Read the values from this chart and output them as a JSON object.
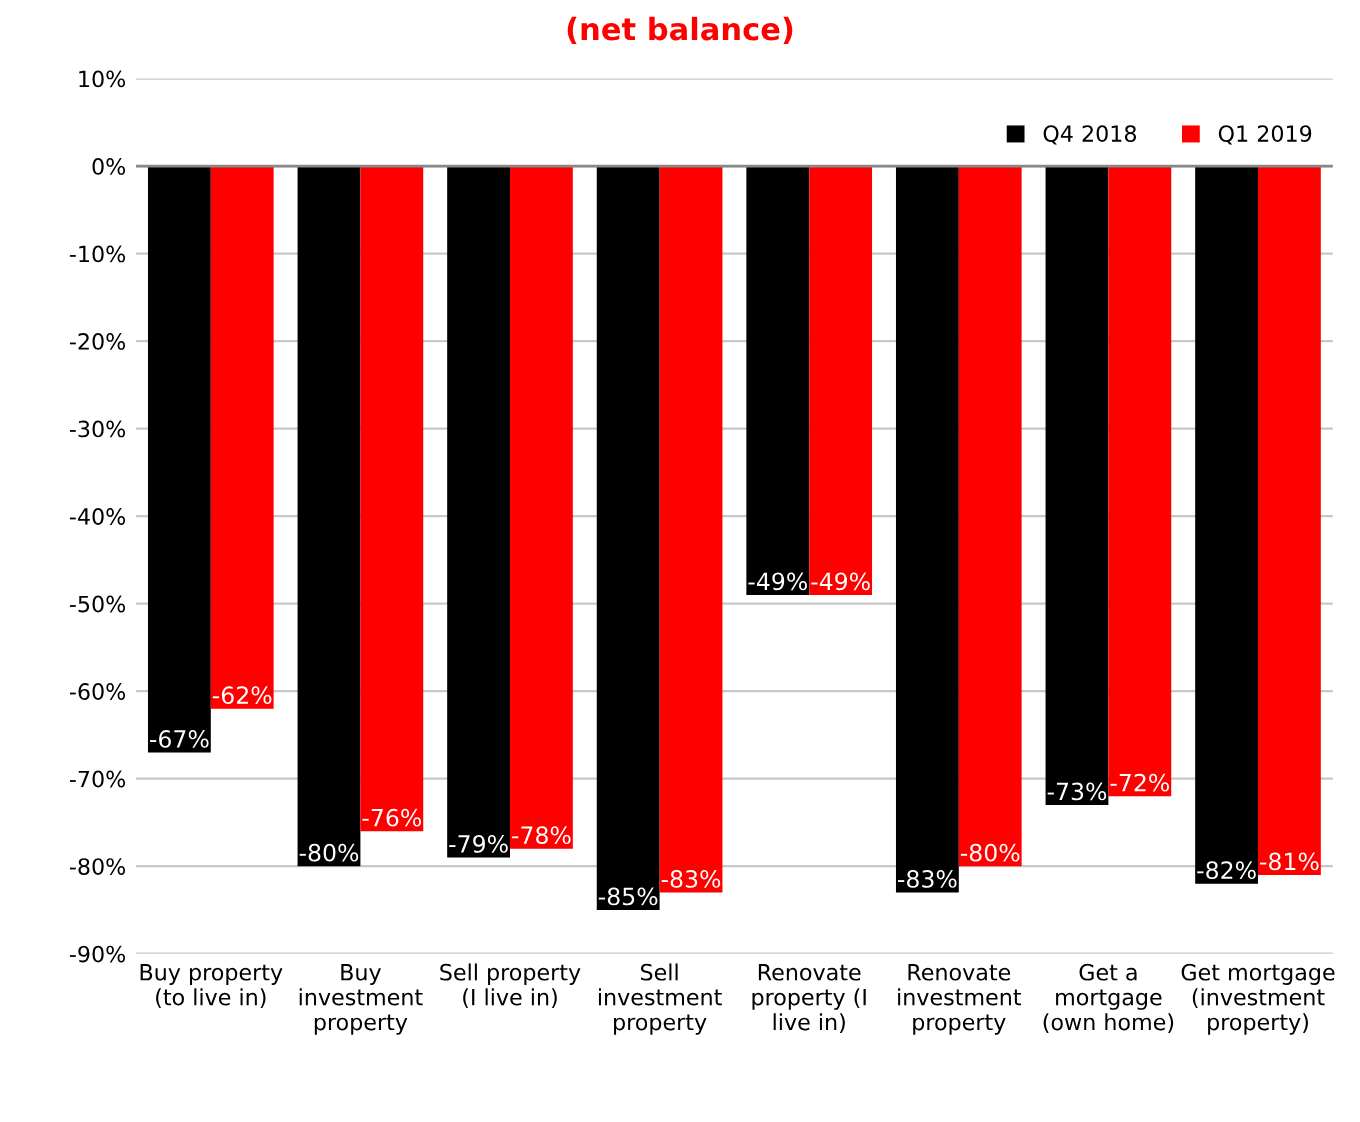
{
  "chart_data": {
    "type": "bar",
    "title": "(net balance)",
    "categories": [
      "Buy property\n(to live in)",
      "Buy\ninvestment\nproperty",
      "Sell property\n(I live in)",
      "Sell\ninvestment\nproperty",
      "Renovate\nproperty (I\nlive in)",
      "Renovate\ninvestment\nproperty",
      "Get a\nmortgage\n(own home)",
      "Get mortgage\n(investment\nproperty)"
    ],
    "series": [
      {
        "name": "Q4 2018",
        "color": "#000000",
        "values": [
          -67,
          -80,
          -79,
          -85,
          -49,
          -83,
          -73,
          -82
        ],
        "value_labels": [
          "-67%",
          "-80%",
          "-79%",
          "-85%",
          "-49%",
          "-83%",
          "-73%",
          "-82%"
        ]
      },
      {
        "name": "Q1 2019",
        "color": "#ff0000",
        "values": [
          -62,
          -76,
          -78,
          -83,
          -49,
          -80,
          -72,
          -81
        ],
        "value_labels": [
          "-62%",
          "-76%",
          "-78%",
          "-83%",
          "-49%",
          "-80%",
          "-72%",
          "-81%"
        ]
      }
    ],
    "ylim": [
      -90,
      10
    ],
    "yticks": [
      {
        "value": 10,
        "label": "10%"
      },
      {
        "value": 0,
        "label": "0%"
      },
      {
        "value": -10,
        "label": "-10%"
      },
      {
        "value": -20,
        "label": "-20%"
      },
      {
        "value": -30,
        "label": "-30%"
      },
      {
        "value": -40,
        "label": "-40%"
      },
      {
        "value": -50,
        "label": "-50%"
      },
      {
        "value": -60,
        "label": "-60%"
      },
      {
        "value": -70,
        "label": "-70%"
      },
      {
        "value": -80,
        "label": "-80%"
      },
      {
        "value": -90,
        "label": "-90%"
      }
    ],
    "grid": "y",
    "legend": "top right"
  }
}
